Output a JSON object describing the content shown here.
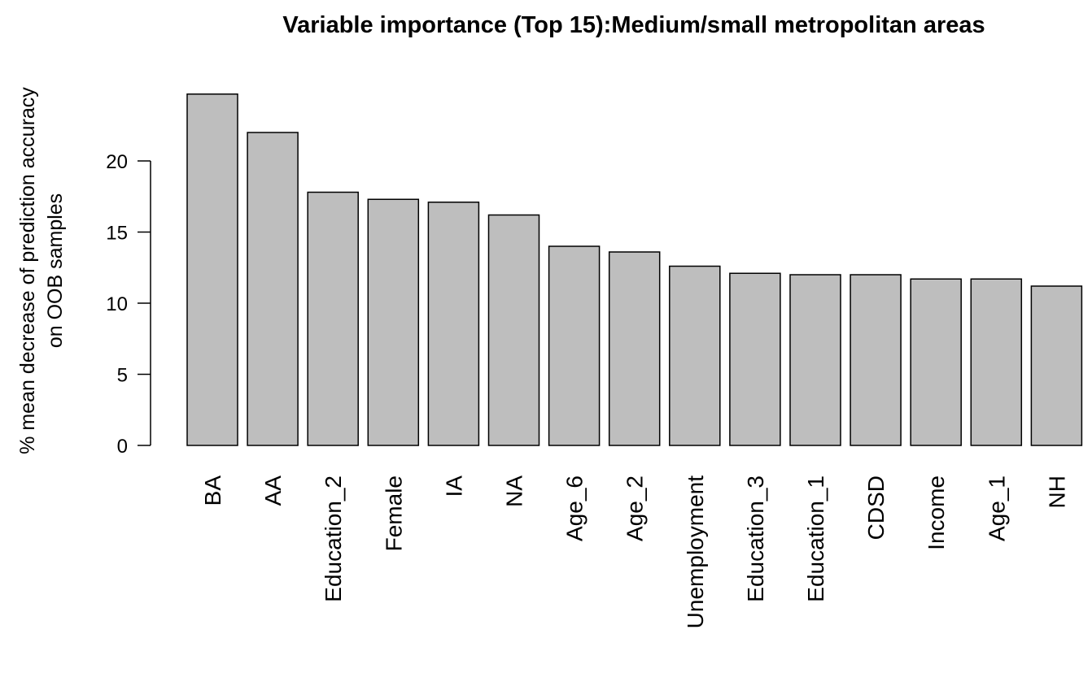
{
  "chart_data": {
    "type": "bar",
    "title": "Variable importance (Top 15):Medium/small metropolitan areas",
    "ylabel_line1": "% mean decrease of prediction accuracy",
    "ylabel_line2": "on OOB samples",
    "xlabel": "",
    "categories": [
      "BA",
      "AA",
      "Education_2",
      "Female",
      "IA",
      "NA",
      "Age_6",
      "Age_2",
      "Unemployment",
      "Education_3",
      "Education_1",
      "CDSD",
      "Income",
      "Age_1",
      "NH"
    ],
    "values": [
      24.7,
      22.0,
      17.8,
      17.3,
      17.1,
      16.2,
      14.0,
      13.6,
      12.6,
      12.1,
      12.0,
      12.0,
      11.7,
      11.7,
      11.2
    ],
    "yticks": [
      0,
      5,
      10,
      15,
      20
    ],
    "ylim": [
      0,
      25.5
    ],
    "grid": false,
    "legend": "none",
    "bar_fill": "#bebebe",
    "bar_stroke": "#000000"
  }
}
